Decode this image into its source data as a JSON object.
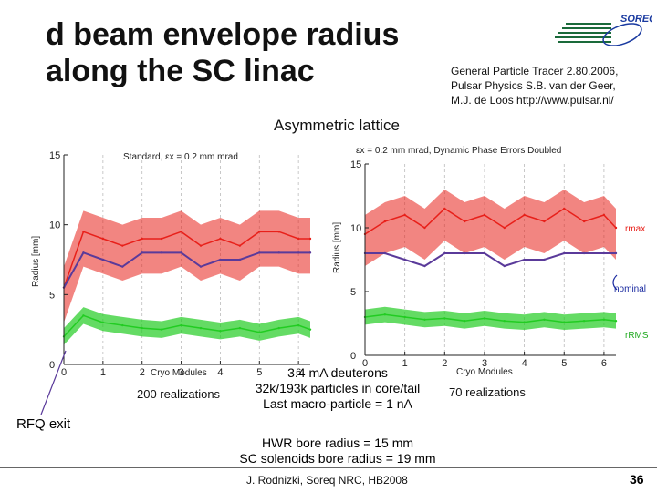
{
  "slide": {
    "title_line1": "d beam envelope radius",
    "title_line2": "along the SC linac",
    "credit_line1": "General Particle Tracer 2.80.2006,",
    "credit_line2": "Pulsar Physics S.B. van der Geer,",
    "credit_line3": "M.J. de Loos http://www.pulsar.nl/",
    "logo_text": "SOREQ",
    "lattice_label": "Asymmetric lattice",
    "left_realizations": "200 realizations",
    "right_realizations": "70 realizations",
    "center_line1": "3.4 mA deuterons",
    "center_line2": "32k/193k particles in core/tail",
    "center_line3": "Last macro-particle = 1 nA",
    "rfq_label": "RFQ exit",
    "bore_line1": "HWR bore radius = 15 mm",
    "bore_line2": "SC solenoids bore radius = 19 mm",
    "footer": "J. Rodnizki, Soreq NRC, HB2008",
    "page_number": "36",
    "label_rmax": "rmax",
    "label_nominal": "nominal",
    "label_rrms": "rRMS"
  },
  "colors": {
    "envelope_max": "#e8201a",
    "envelope_rms": "#22cc22",
    "nominal": "#5a3a9a",
    "axis": "#222222"
  },
  "chart_data": [
    {
      "type": "line",
      "title": "Standard, εx = 0.2 mm mrad",
      "xlabel": "Cryo Modules",
      "ylabel": "Radius [mm]",
      "xlim": [
        0,
        6.3
      ],
      "ylim": [
        0,
        15
      ],
      "xticks": [
        0,
        1,
        2,
        3,
        4,
        5,
        6
      ],
      "yticks": [
        0,
        5,
        10,
        15
      ],
      "series": [
        {
          "name": "rmax",
          "x": [
            0,
            0.5,
            1,
            1.5,
            2,
            2.5,
            3,
            3.5,
            4,
            4.5,
            5,
            5.5,
            6,
            6.3
          ],
          "values": [
            5.5,
            9.5,
            9.0,
            8.5,
            9.0,
            9.0,
            9.5,
            8.5,
            9.0,
            8.5,
            9.5,
            9.5,
            9.0,
            9.0
          ]
        },
        {
          "name": "nominal",
          "x": [
            0,
            0.5,
            1,
            1.5,
            2,
            2.5,
            3,
            3.5,
            4,
            4.5,
            5,
            5.5,
            6,
            6.3
          ],
          "values": [
            5.5,
            8.0,
            7.5,
            7.0,
            8.0,
            8.0,
            8.0,
            7.0,
            7.5,
            7.5,
            8.0,
            8.0,
            8.0,
            8.0
          ]
        },
        {
          "name": "rRMS",
          "x": [
            0,
            0.5,
            1,
            1.5,
            2,
            2.5,
            3,
            3.5,
            4,
            4.5,
            5,
            5.5,
            6,
            6.3
          ],
          "values": [
            2.0,
            3.5,
            3.0,
            2.8,
            2.6,
            2.5,
            2.8,
            2.6,
            2.4,
            2.6,
            2.3,
            2.6,
            2.8,
            2.5
          ]
        }
      ]
    },
    {
      "type": "line",
      "title": "εx = 0.2 mm mrad, Dynamic Phase Errors Doubled",
      "xlabel": "Cryo Modules",
      "ylabel": "Radius [mm]",
      "xlim": [
        0,
        6.3
      ],
      "ylim": [
        0,
        15
      ],
      "xticks": [
        0,
        1,
        2,
        3,
        4,
        5,
        6
      ],
      "yticks": [
        0,
        5,
        10,
        15
      ],
      "series": [
        {
          "name": "rmax",
          "x": [
            0,
            0.5,
            1,
            1.5,
            2,
            2.5,
            3,
            3.5,
            4,
            4.5,
            5,
            5.5,
            6,
            6.3
          ],
          "values": [
            9.5,
            10.5,
            11.0,
            10.0,
            11.5,
            10.5,
            11.0,
            10.0,
            11.0,
            10.5,
            11.5,
            10.5,
            11.0,
            10.0
          ]
        },
        {
          "name": "nominal",
          "x": [
            0,
            0.5,
            1,
            1.5,
            2,
            2.5,
            3,
            3.5,
            4,
            4.5,
            5,
            5.5,
            6,
            6.3
          ],
          "values": [
            8.0,
            8.0,
            7.5,
            7.0,
            8.0,
            8.0,
            8.0,
            7.0,
            7.5,
            7.5,
            8.0,
            8.0,
            8.0,
            8.0
          ]
        },
        {
          "name": "rRMS",
          "x": [
            0,
            0.5,
            1,
            1.5,
            2,
            2.5,
            3,
            3.5,
            4,
            4.5,
            5,
            5.5,
            6,
            6.3
          ],
          "values": [
            3.0,
            3.2,
            3.0,
            2.8,
            2.9,
            2.7,
            2.9,
            2.7,
            2.6,
            2.8,
            2.6,
            2.7,
            2.8,
            2.7
          ]
        }
      ]
    }
  ]
}
